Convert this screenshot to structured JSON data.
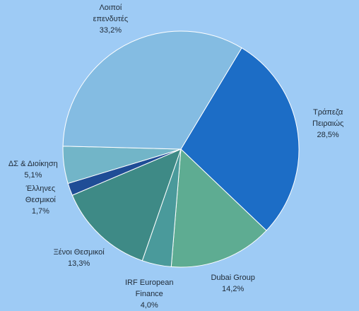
{
  "chart_data": {
    "type": "pie",
    "title": "",
    "start_angle_deg": 31,
    "direction": "clockwise",
    "slices": [
      {
        "label_lines": [
          "Τράπεζα",
          "Πειραιώς"
        ],
        "value_label": "28,5%",
        "value": 28.5,
        "color": "#1c6dc6"
      },
      {
        "label_lines": [
          "Dubai Group"
        ],
        "value_label": "14,2%",
        "value": 14.2,
        "color": "#5eac92"
      },
      {
        "label_lines": [
          "IRF European",
          "Finance"
        ],
        "value_label": "4,0%",
        "value": 4.0,
        "color": "#4a9a9b"
      },
      {
        "label_lines": [
          "Ξένοι Θεσμικοί"
        ],
        "value_label": "13,3%",
        "value": 13.3,
        "color": "#3e8a86"
      },
      {
        "label_lines": [
          "Έλληνες",
          "Θεσμικοί"
        ],
        "value_label": "1,7%",
        "value": 1.7,
        "color": "#1f4d96"
      },
      {
        "label_lines": [
          "ΔΣ & Διοίκηση"
        ],
        "value_label": "5,1%",
        "value": 5.1,
        "color": "#72b5c8"
      },
      {
        "label_lines": [
          "Λοιποί",
          "επενδυτές"
        ],
        "value_label": "33,2%",
        "value": 33.2,
        "color": "#84bce2"
      }
    ]
  }
}
